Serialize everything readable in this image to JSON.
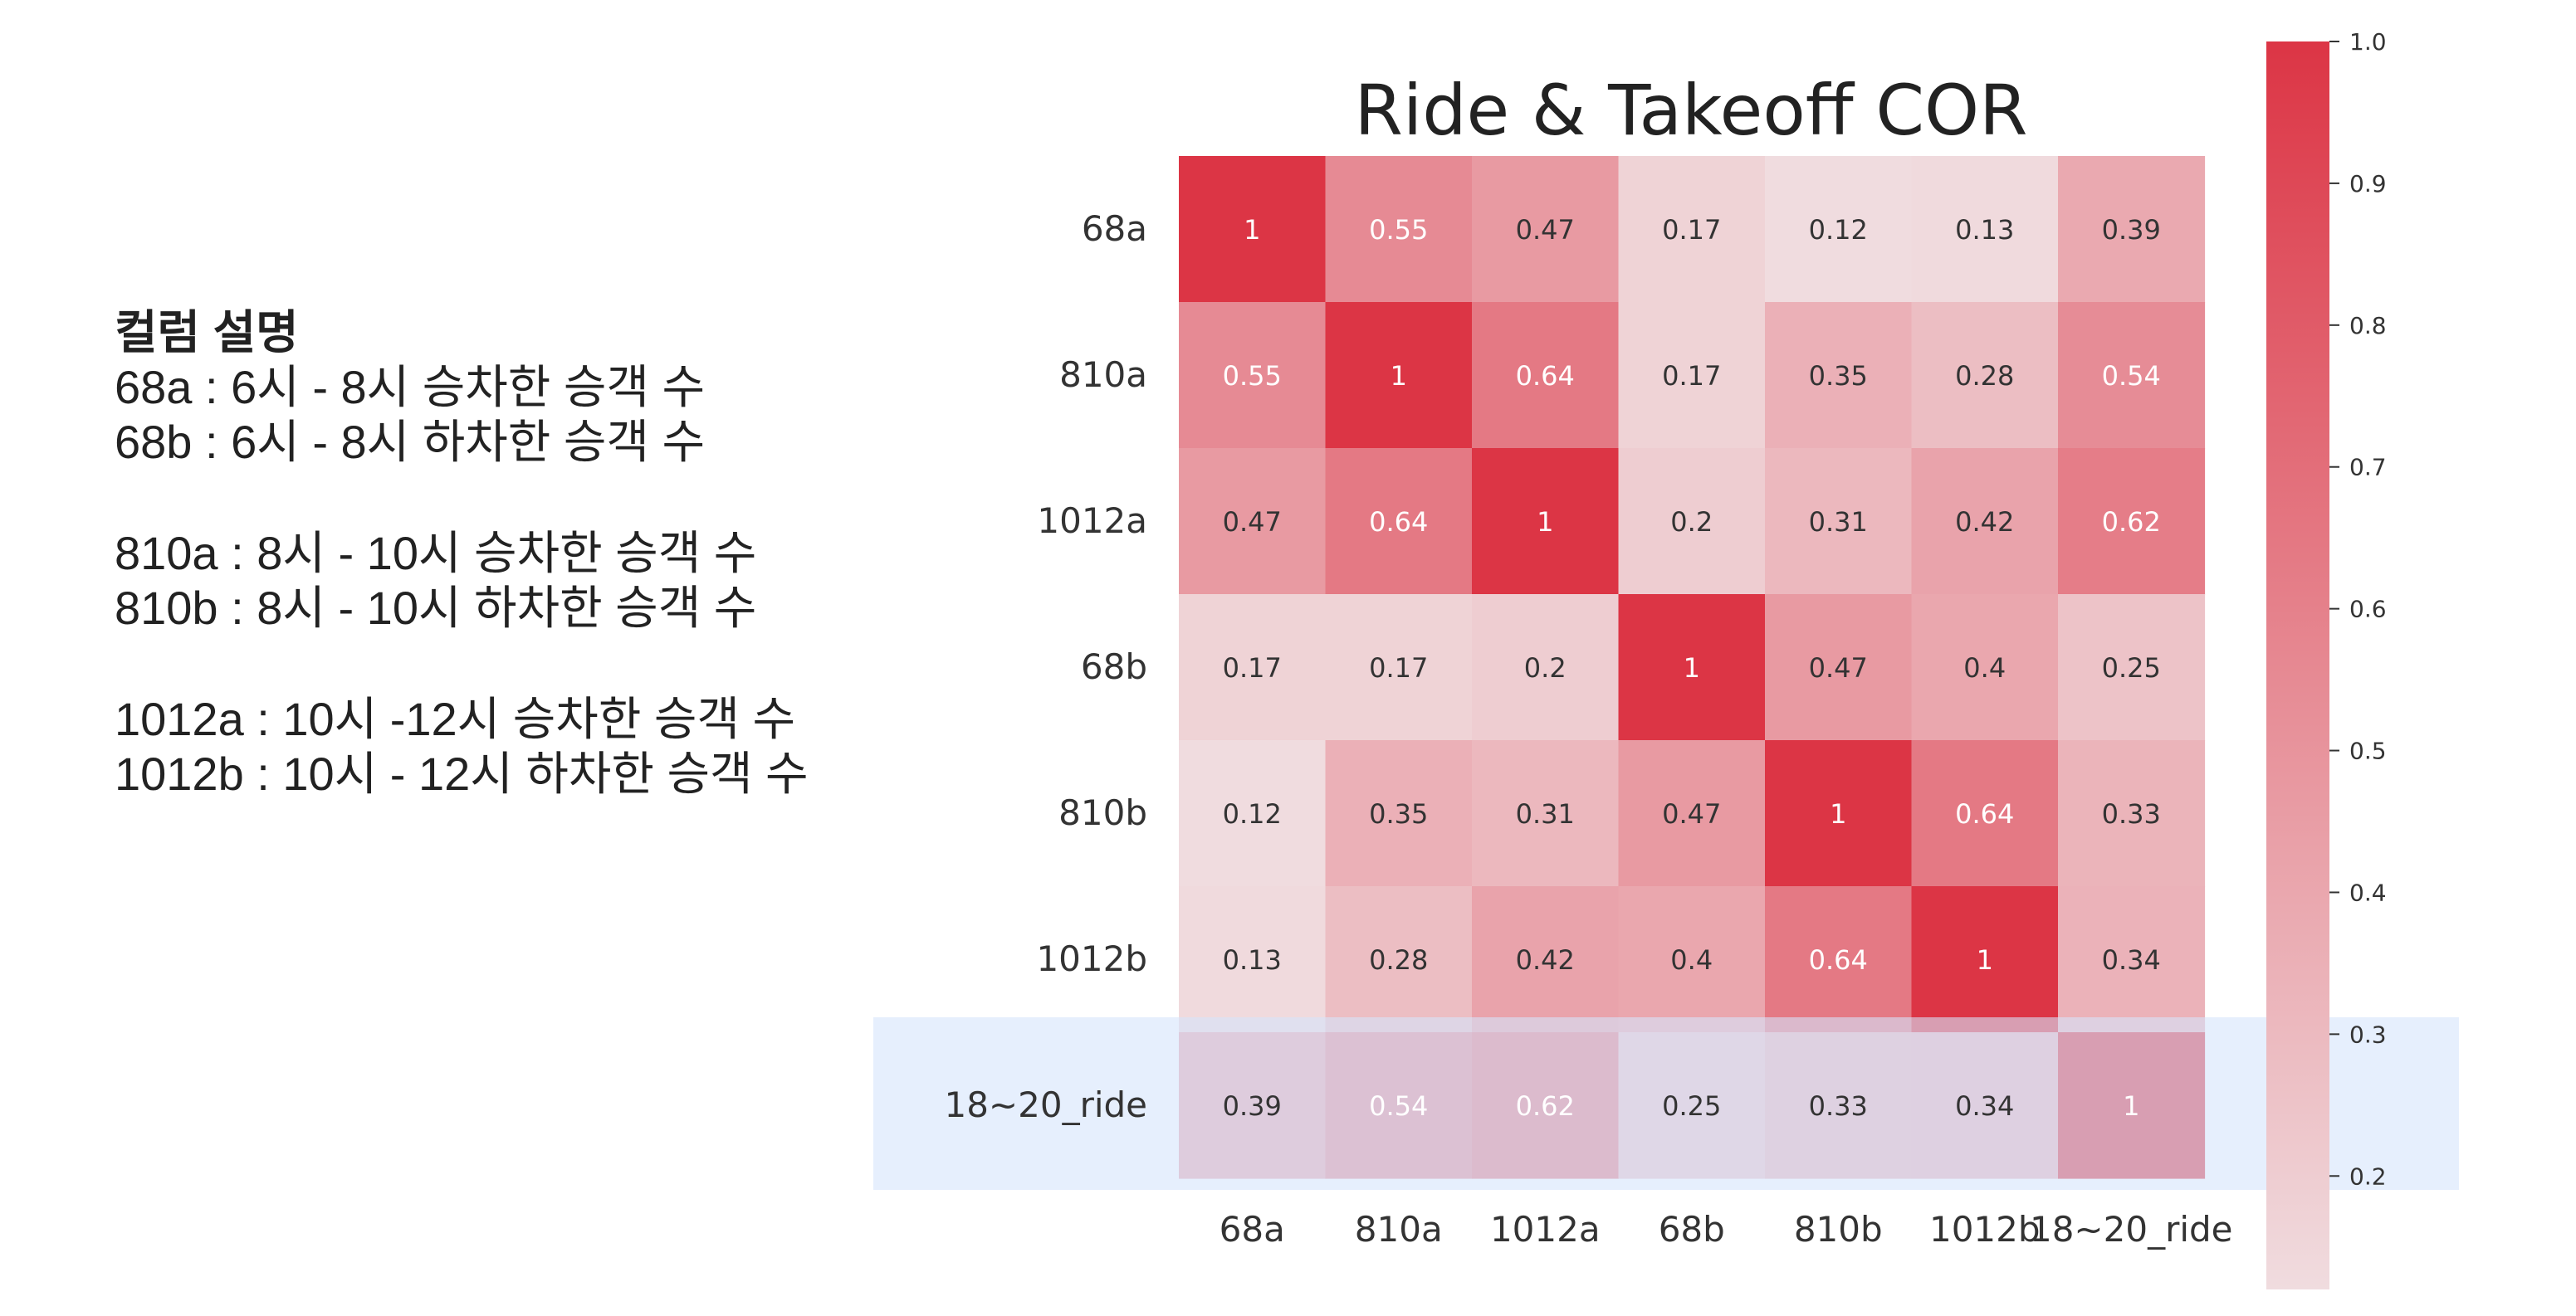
{
  "legend": {
    "heading": "컬럼 설명",
    "lines": [
      "68a : 6시 - 8시 승차한 승객 수",
      "68b : 6시 - 8시 하차한 승객 수",
      "",
      "810a : 8시 - 10시 승차한 승객 수",
      "810b : 8시 - 10시 하차한 승객 수",
      "",
      "1012a : 10시 -12시 승차한 승객 수",
      "1012b : 10시 - 12시 하차한 승객 수"
    ]
  },
  "colors": {
    "low": "#f0dcdf",
    "high": "#dc3545",
    "highlight": "#d6e4fb"
  },
  "chart_data": {
    "type": "heatmap",
    "title": "Ride & Takeoff COR",
    "xlabel": "",
    "ylabel": "",
    "x_labels": [
      "68a",
      "810a",
      "1012a",
      "68b",
      "810b",
      "1012b",
      "18~20_ride"
    ],
    "y_labels": [
      "68a",
      "810a",
      "1012a",
      "68b",
      "810b",
      "1012b",
      "18~20_ride"
    ],
    "values": [
      [
        1,
        0.55,
        0.47,
        0.17,
        0.12,
        0.13,
        0.39
      ],
      [
        0.55,
        1,
        0.64,
        0.17,
        0.35,
        0.28,
        0.54
      ],
      [
        0.47,
        0.64,
        1,
        0.2,
        0.31,
        0.42,
        0.62
      ],
      [
        0.17,
        0.17,
        0.2,
        1,
        0.47,
        0.4,
        0.25
      ],
      [
        0.12,
        0.35,
        0.31,
        0.47,
        1,
        0.64,
        0.33
      ],
      [
        0.13,
        0.28,
        0.42,
        0.4,
        0.64,
        1,
        0.34
      ],
      [
        0.39,
        0.54,
        0.62,
        0.25,
        0.33,
        0.34,
        1
      ]
    ],
    "colorbar": {
      "range": [
        0.12,
        1.0
      ],
      "ticks": [
        "1.0",
        "0.9",
        "0.8",
        "0.7",
        "0.6",
        "0.5",
        "0.4",
        "0.3",
        "0.2"
      ]
    },
    "highlighted_row": "18~20_ride"
  }
}
